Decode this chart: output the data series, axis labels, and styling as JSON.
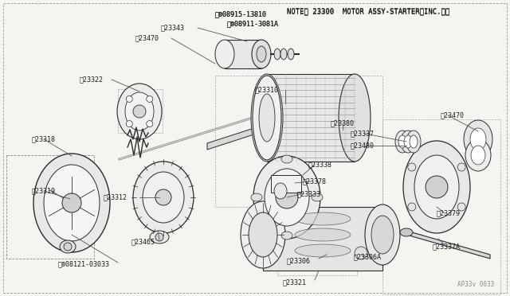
{
  "bg_color": "#f5f5f0",
  "line_color": "#2a2a2a",
  "text_color": "#1a1a1a",
  "figsize": [
    6.4,
    3.72
  ],
  "dpi": 100,
  "header_note": "NOTE、 23300  MOTOR ASSY-STARTER（INC.※）",
  "bolt1": "※®08915-13810",
  "bolt2": "※®08911-3081A",
  "watermark": "AP33v 0033",
  "label_fs": 6.0,
  "header_fs": 6.5
}
